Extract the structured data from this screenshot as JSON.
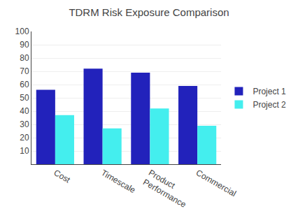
{
  "chart_data": {
    "type": "bar",
    "title": "TDRM Risk Exposure Comparison",
    "categories": [
      "Cost",
      "Timescale",
      "Product\nPerformance",
      "Commercial"
    ],
    "series": [
      {
        "name": "Project 1",
        "color": "#2222BB",
        "values": [
          56,
          72,
          69,
          59
        ]
      },
      {
        "name": "Project 2",
        "color": "#44EEEE",
        "values": [
          37,
          27,
          42,
          29
        ]
      }
    ],
    "ylim": [
      0,
      100
    ],
    "yticks": [
      10,
      20,
      30,
      40,
      50,
      60,
      70,
      80,
      90,
      100
    ],
    "grid": true,
    "legend": "right"
  }
}
